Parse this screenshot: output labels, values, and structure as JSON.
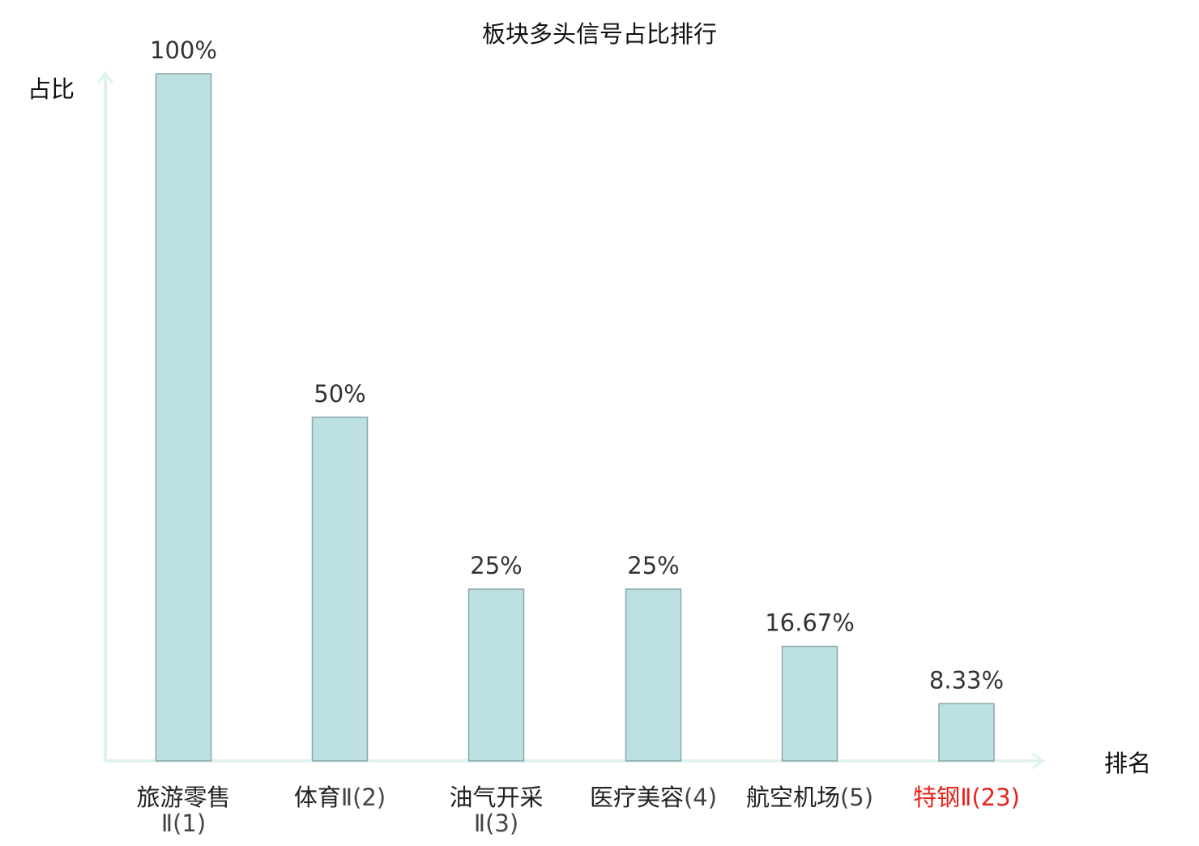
{
  "chart_data": {
    "type": "bar",
    "title": "板块多头信号占比排行",
    "xlabel": "排名",
    "ylabel": "占比",
    "categories": [
      {
        "name": "旅游零售",
        "rank": "Ⅱ(1)",
        "highlight": false
      },
      {
        "name": "体育",
        "rank": "Ⅱ(2)",
        "highlight": false
      },
      {
        "name": "油气开采",
        "rank": "Ⅱ(3)",
        "highlight": false
      },
      {
        "name": "医疗美容",
        "rank": "(4)",
        "highlight": false
      },
      {
        "name": "航空机场",
        "rank": "(5)",
        "highlight": false
      },
      {
        "name": "特钢",
        "rank": "Ⅱ(23)",
        "highlight": true
      }
    ],
    "values": [
      100,
      50,
      25,
      25,
      16.67,
      8.33
    ],
    "value_labels": [
      "100%",
      "50%",
      "25%",
      "25%",
      "16.67%",
      "8.33%"
    ],
    "ylim": [
      0,
      100
    ],
    "grid": false,
    "colors": {
      "bar_fill": "#bde0e3",
      "bar_stroke": "#8aa7aa",
      "axis": "#e0f2ef",
      "text": "#333333",
      "category_text": "#222222",
      "rank_text": "#444444",
      "highlight": "#e8231d"
    }
  }
}
